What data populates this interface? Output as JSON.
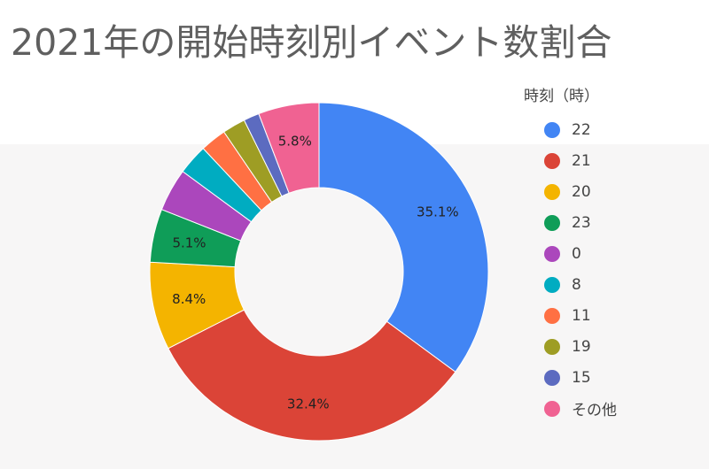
{
  "title": "2021年の開始時刻別イベント数割合",
  "legend": {
    "title": "時刻（時）",
    "placement": "right"
  },
  "chart_data": {
    "type": "pie",
    "donut": true,
    "title": "2021年の開始時刻別イベント数割合",
    "legend_title": "時刻（時）",
    "slices": [
      {
        "label": "22",
        "value": 35.1,
        "display": "35.1%",
        "color": "#4285f4"
      },
      {
        "label": "21",
        "value": 32.4,
        "display": "32.4%",
        "color": "#db4437"
      },
      {
        "label": "20",
        "value": 8.4,
        "display": "8.4%",
        "color": "#f4b400"
      },
      {
        "label": "23",
        "value": 5.1,
        "display": "5.1%",
        "color": "#0f9d58"
      },
      {
        "label": "0",
        "value": 4.1,
        "display": "",
        "color": "#ab47bc"
      },
      {
        "label": "8",
        "value": 2.9,
        "display": "",
        "color": "#00acc1"
      },
      {
        "label": "11",
        "value": 2.5,
        "display": "",
        "color": "#ff7043"
      },
      {
        "label": "19",
        "value": 2.2,
        "display": "",
        "color": "#9e9d24"
      },
      {
        "label": "15",
        "value": 1.5,
        "display": "",
        "color": "#5c6bc0"
      },
      {
        "label": "その他",
        "value": 5.8,
        "display": "5.8%",
        "color": "#f06292"
      }
    ]
  }
}
